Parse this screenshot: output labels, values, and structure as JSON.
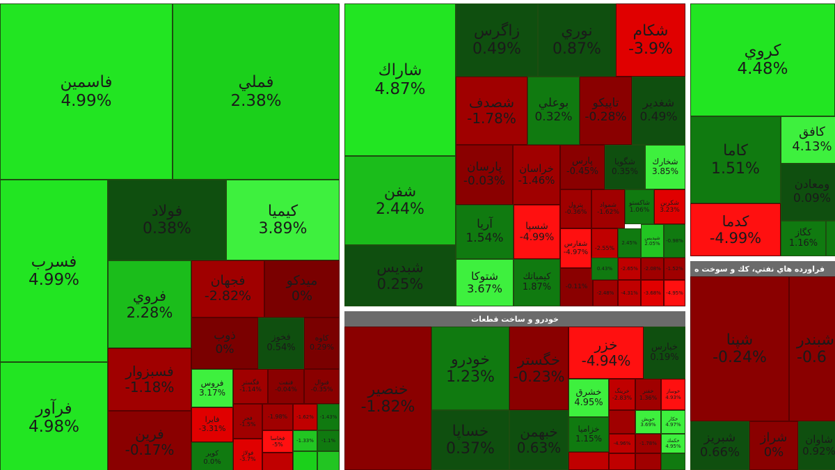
{
  "colors": {
    "strong_gain": "#22e522",
    "gain": "#11b811",
    "mild_gain": "#107a10",
    "flat": "#0f4f0f",
    "mild_loss": "#8a0000",
    "loss": "#c80000",
    "strong_loss": "#ff1010",
    "header": "#6b6b6b"
  },
  "sectors": {
    "auto": {
      "title": "خودرو و ساخت قطعات"
    },
    "petroleum": {
      "title": "فراورده هاي نفتي، كك و سوخت ه"
    }
  },
  "tiles": {
    "fasamin": {
      "name": "فاسمين",
      "change": "4.99%"
    },
    "femli": {
      "name": "فملي",
      "change": "2.38%"
    },
    "fasrab": {
      "name": "فسرب",
      "change": "4.99%"
    },
    "faravar": {
      "name": "فرآور",
      "change": "4.98%"
    },
    "foolad": {
      "name": "فولاد",
      "change": "0.38%"
    },
    "kimia": {
      "name": "كيميا",
      "change": "3.89%"
    },
    "foravi": {
      "name": "فروي",
      "change": "2.28%"
    },
    "fajhan": {
      "name": "فجهان",
      "change": "-2.82%"
    },
    "meydco": {
      "name": "ميدكو",
      "change": "0%"
    },
    "zob": {
      "name": "ذوب",
      "change": "0%"
    },
    "fakhoor": {
      "name": "فخوز",
      "change": "0.54%"
    },
    "kave": {
      "name": "كاوه",
      "change": "0.29%"
    },
    "fasabzevar": {
      "name": "فسبزوار",
      "change": "-1.18%"
    },
    "farin": {
      "name": "فرين",
      "change": "-0.17%"
    },
    "foros": {
      "name": "فروس",
      "change": "3.17%"
    },
    "fagostar": {
      "name": "فگستر",
      "change": "-1.14%"
    },
    "fanak": {
      "name": "فنفت",
      "change": "-0.04%"
    },
    "fakooh": {
      "name": "فنوال",
      "change": "-0.35%"
    },
    "faira": {
      "name": "فايرا",
      "change": "-3.31%"
    },
    "fajr": {
      "name": "فجر",
      "change": "-1.5%"
    },
    "s1": {
      "name": "",
      "change": "-1.98%"
    },
    "s2": {
      "name": "",
      "change": "-1.62%"
    },
    "s3": {
      "name": "",
      "change": "-1.43%"
    },
    "fakhasa": {
      "name": "فخاسا",
      "change": "-5%"
    },
    "s4": {
      "name": "",
      "change": "-1.33%"
    },
    "s5": {
      "name": "",
      "change": "-1.1%"
    },
    "kovir": {
      "name": "كوير",
      "change": "0.0%"
    },
    "fooalad": {
      "name": "فولاژ",
      "change": "-3.7%"
    },
    "s6": {
      "name": "",
      "change": ""
    },
    "shark": {
      "name": "شاراك",
      "change": "4.87%"
    },
    "shafan": {
      "name": "شفن",
      "change": "2.44%"
    },
    "shebdis": {
      "name": "شبديس",
      "change": "0.25%"
    },
    "zagros": {
      "name": "زاگرس",
      "change": "0.49%"
    },
    "noori": {
      "name": "نوري",
      "change": "0.87%"
    },
    "shekam": {
      "name": "شكام",
      "change": "-3.9%"
    },
    "shasadaf": {
      "name": "شصدف",
      "change": "-1.78%"
    },
    "buali": {
      "name": "بوعلي",
      "change": "0.32%"
    },
    "tapiko": {
      "name": "تاپيكو",
      "change": "-0.28%"
    },
    "shghadir": {
      "name": "شغدير",
      "change": "0.49%"
    },
    "parsan": {
      "name": "پارسان",
      "change": "-0.03%"
    },
    "khorasan": {
      "name": "خراسان",
      "change": "-1.46%"
    },
    "pars": {
      "name": "پارس",
      "change": "-0.45%"
    },
    "shegooya": {
      "name": "شگويا",
      "change": "0.35%"
    },
    "shekhark": {
      "name": "شخارك",
      "change": "3.85%"
    },
    "arya": {
      "name": "آريا",
      "change": "1.54%"
    },
    "shasepa": {
      "name": "شسپا",
      "change": "-4.99%"
    },
    "shatoka": {
      "name": "شتوكا",
      "change": "3.67%"
    },
    "kimiatak": {
      "name": "كيمياتك",
      "change": "1.87%"
    },
    "p1": {
      "name": "پترول",
      "change": "-0.36%"
    },
    "p2": {
      "name": "شمواد",
      "change": "-1.62%"
    },
    "p3": {
      "name": "شاكستو",
      "change": "1.06%"
    },
    "p4": {
      "name": "شكربن",
      "change": "3.23%"
    },
    "p5": {
      "name": "شفارس",
      "change": "-4.97%"
    },
    "p6": {
      "name": "",
      "change": "-2.55%"
    },
    "p7": {
      "name": "",
      "change": "2.45%"
    },
    "p8": {
      "name": "شپديس",
      "change": "2.05%"
    },
    "p9": {
      "name": "",
      "change": "-0.98%"
    },
    "p10": {
      "name": "",
      "change": "-0.11%"
    },
    "p11": {
      "name": "",
      "change": "0.43%"
    },
    "p12": {
      "name": "",
      "change": "-2.65%"
    },
    "p13": {
      "name": "",
      "change": "-2.08%"
    },
    "p14": {
      "name": "",
      "change": "-1.52%"
    },
    "p15": {
      "name": "",
      "change": "-2.48%"
    },
    "p16": {
      "name": "",
      "change": "-4.31%"
    },
    "p17": {
      "name": "",
      "change": "-3.68%"
    },
    "p18": {
      "name": "",
      "change": "0.43%"
    },
    "p19": {
      "name": "",
      "change": "-1.3%"
    },
    "p20": {
      "name": "",
      "change": "-4.95%"
    },
    "korooy": {
      "name": "كروي",
      "change": "4.48%"
    },
    "kama": {
      "name": "كاما",
      "change": "1.51%"
    },
    "kaafegh": {
      "name": "كافق",
      "change": "4.13%"
    },
    "vamaaden": {
      "name": "ومعادن",
      "change": "0.09%"
    },
    "kadma": {
      "name": "كدما",
      "change": "-4.99%"
    },
    "kogaz": {
      "name": "كگاز",
      "change": "1.16%"
    },
    "m1": {
      "name": "",
      "change": ""
    },
    "khanser": {
      "name": "خنصير",
      "change": "-1.82%"
    },
    "khodro": {
      "name": "خودرو",
      "change": "1.23%"
    },
    "khegostar": {
      "name": "خگستر",
      "change": "-0.23%"
    },
    "khazar": {
      "name": "خزر",
      "change": "-4.94%"
    },
    "khabarman": {
      "name": "خبارس",
      "change": "0.19%"
    },
    "khasapa": {
      "name": "خساپا",
      "change": "0.37%"
    },
    "khebahman": {
      "name": "خبهمن",
      "change": "0.63%"
    },
    "khashragh": {
      "name": "خشرق",
      "change": "4.95%"
    },
    "khazamia": {
      "name": "خزاميا",
      "change": "1.15%"
    },
    "a1": {
      "name": "خرينگ",
      "change": "-2.83%"
    },
    "a2": {
      "name": "خفنر",
      "change": "1.36%"
    },
    "a3": {
      "name": "خوساز",
      "change": "4.93%"
    },
    "a4": {
      "name": "",
      "change": ""
    },
    "a5": {
      "name": "خويش",
      "change": "3.69%"
    },
    "a6": {
      "name": "خكار",
      "change": "4.97%"
    },
    "a7": {
      "name": "خچرخش",
      "change": ""
    },
    "a8": {
      "name": "",
      "change": "-4.96%"
    },
    "a9": {
      "name": "",
      "change": "-1.78%"
    },
    "a10": {
      "name": "خكمك",
      "change": "4.95%"
    },
    "a11": {
      "name": "",
      "change": ""
    },
    "shepna": {
      "name": "شپنا",
      "change": "-0.24%"
    },
    "shabandar": {
      "name": "شبندر",
      "change": "-0.6"
    },
    "shebriz": {
      "name": "شبريز",
      "change": "0.66%"
    },
    "shiraz": {
      "name": "شراز",
      "change": "0%"
    },
    "shavan": {
      "name": "شاوان",
      "change": "0.92%"
    },
    "r1": {
      "name": "",
      "change": ""
    }
  }
}
